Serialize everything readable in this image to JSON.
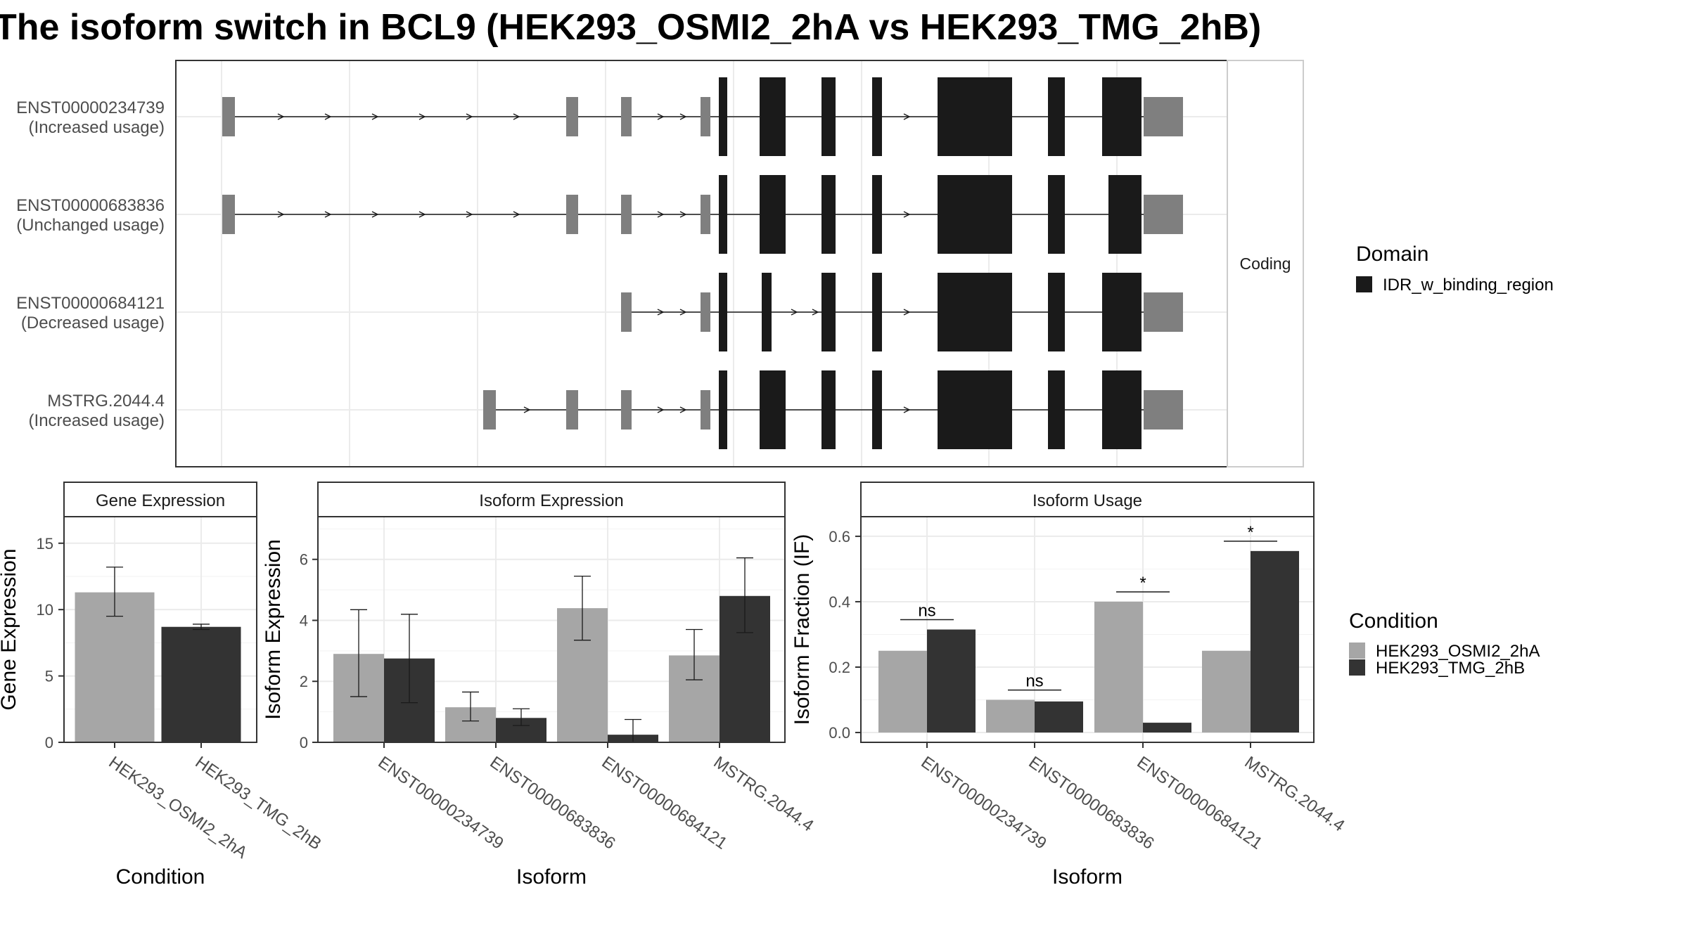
{
  "title": "The isoform switch in BCL9 (HEK293_OSMI2_2hA vs HEK293_TMG_2hB)",
  "structure_panel": {
    "strip_label": "Coding",
    "transcripts": [
      {
        "id": "ENST00000234739",
        "usage": "(Increased usage)"
      },
      {
        "id": "ENST00000683836",
        "usage": "(Unchanged usage)"
      },
      {
        "id": "ENST00000684121",
        "usage": "(Decreased usage)"
      },
      {
        "id": "MSTRG.2044.4",
        "usage": "(Increased usage)"
      }
    ]
  },
  "domain_legend": {
    "title": "Domain",
    "items": [
      {
        "label": "IDR_w_binding_region",
        "color": "#1a1a1a"
      }
    ]
  },
  "condition_legend": {
    "title": "Condition",
    "items": [
      {
        "label": "HEK293_OSMI2_2hA",
        "color": "#a6a6a6"
      },
      {
        "label": "HEK293_TMG_2hB",
        "color": "#333333"
      }
    ]
  },
  "colors": {
    "cond_a": "#a6a6a6",
    "cond_b": "#333333",
    "domain": "#1a1a1a",
    "utr": "#7f7f7f"
  },
  "chart_data": [
    {
      "type": "bar",
      "title": "Gene Expression",
      "xlabel": "Condition",
      "ylabel": "Gene Expression",
      "ylim": [
        0,
        17
      ],
      "yticks": [
        0,
        5,
        10,
        15
      ],
      "categories": [
        "HEK293_OSMI2_2hA",
        "HEK293_TMG_2hB"
      ],
      "values": [
        11.3,
        8.7
      ],
      "errors": [
        [
          9.5,
          13.2
        ],
        [
          8.5,
          8.9
        ]
      ]
    },
    {
      "type": "bar",
      "title": "Isoform Expression",
      "xlabel": "Isoform",
      "ylabel": "Isoform Expression",
      "ylim": [
        0,
        7.4
      ],
      "yticks": [
        0,
        2,
        4,
        6
      ],
      "categories": [
        "ENST00000234739",
        "ENST00000683836",
        "ENST00000684121",
        "MSTRG.2044.4"
      ],
      "series": [
        {
          "name": "HEK293_OSMI2_2hA",
          "values": [
            2.9,
            1.15,
            4.4,
            2.85
          ],
          "errors": [
            [
              1.5,
              4.35
            ],
            [
              0.7,
              1.65
            ],
            [
              3.35,
              5.45
            ],
            [
              2.05,
              3.7
            ]
          ]
        },
        {
          "name": "HEK293_TMG_2hB",
          "values": [
            2.75,
            0.8,
            0.25,
            4.8
          ],
          "errors": [
            [
              1.3,
              4.2
            ],
            [
              0.55,
              1.1
            ],
            [
              0.0,
              0.75
            ],
            [
              3.6,
              6.05
            ]
          ]
        }
      ]
    },
    {
      "type": "bar",
      "title": "Isoform Usage",
      "xlabel": "Isoform",
      "ylabel": "Isoform Fraction (IF)",
      "ylim": [
        -0.03,
        0.66
      ],
      "yticks": [
        0.0,
        0.2,
        0.4,
        0.6
      ],
      "ytick_labels": [
        "0.0",
        "0.2",
        "0.4",
        "0.6"
      ],
      "categories": [
        "ENST00000234739",
        "ENST00000683836",
        "ENST00000684121",
        "MSTRG.2044.4"
      ],
      "series": [
        {
          "name": "HEK293_OSMI2_2hA",
          "values": [
            0.25,
            0.1,
            0.4,
            0.25
          ]
        },
        {
          "name": "HEK293_TMG_2hB",
          "values": [
            0.315,
            0.095,
            0.03,
            0.555
          ]
        }
      ],
      "significance": [
        {
          "label": "ns",
          "y": 0.345
        },
        {
          "label": "ns",
          "y": 0.13
        },
        {
          "label": "*",
          "y": 0.43
        },
        {
          "label": "*",
          "y": 0.585
        }
      ]
    }
  ]
}
